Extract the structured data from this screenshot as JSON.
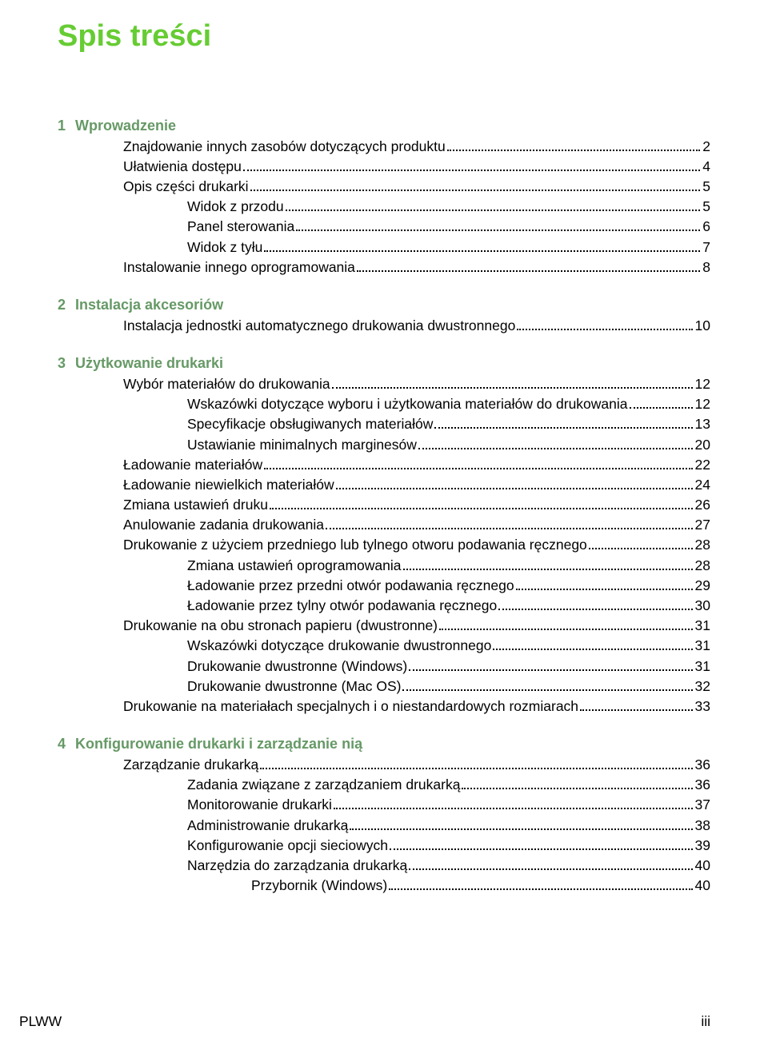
{
  "title": "Spis treści",
  "footer": {
    "left": "PLWW",
    "right": "iii"
  },
  "colors": {
    "title": "#66cc33",
    "section_head": "#669966",
    "text": "#000000",
    "background": "#ffffff"
  },
  "typography": {
    "title_fontsize_pt": 29,
    "body_fontsize_pt": 13,
    "section_head_fontsize_pt": 13.5,
    "font_family": "Arial, Helvetica, sans-serif"
  },
  "sections": [
    {
      "num": "1",
      "title": "Wprowadzenie",
      "entries": [
        {
          "label": "Znajdowanie innych zasobów dotyczących produktu",
          "page": "2",
          "indent": 1
        },
        {
          "label": "Ułatwienia dostępu",
          "page": "4",
          "indent": 1
        },
        {
          "label": "Opis części drukarki",
          "page": "5",
          "indent": 1
        },
        {
          "label": "Widok z przodu",
          "page": "5",
          "indent": 2
        },
        {
          "label": "Panel sterowania",
          "page": "6",
          "indent": 2
        },
        {
          "label": "Widok z tyłu",
          "page": "7",
          "indent": 2
        },
        {
          "label": "Instalowanie innego oprogramowania",
          "page": "8",
          "indent": 1
        }
      ]
    },
    {
      "num": "2",
      "title": "Instalacja akcesoriów",
      "entries": [
        {
          "label": "Instalacja jednostki automatycznego drukowania dwustronnego",
          "page": "10",
          "indent": 1
        }
      ]
    },
    {
      "num": "3",
      "title": "Użytkowanie drukarki",
      "entries": [
        {
          "label": "Wybór materiałów do drukowania",
          "page": "12",
          "indent": 1
        },
        {
          "label": "Wskazówki dotyczące wyboru i użytkowania materiałów do drukowania",
          "page": "12",
          "indent": 2
        },
        {
          "label": "Specyfikacje obsługiwanych materiałów",
          "page": "13",
          "indent": 2
        },
        {
          "label": "Ustawianie minimalnych marginesów",
          "page": "20",
          "indent": 2
        },
        {
          "label": "Ładowanie materiałów",
          "page": "22",
          "indent": 1
        },
        {
          "label": "Ładowanie niewielkich materiałów",
          "page": "24",
          "indent": 1
        },
        {
          "label": "Zmiana ustawień druku",
          "page": "26",
          "indent": 1
        },
        {
          "label": "Anulowanie zadania drukowania",
          "page": "27",
          "indent": 1
        },
        {
          "label": "Drukowanie z użyciem przedniego lub tylnego otworu podawania ręcznego",
          "page": "28",
          "indent": 1
        },
        {
          "label": "Zmiana ustawień oprogramowania",
          "page": "28",
          "indent": 2
        },
        {
          "label": "Ładowanie przez przedni otwór podawania ręcznego",
          "page": "29",
          "indent": 2
        },
        {
          "label": "Ładowanie przez tylny otwór podawania ręcznego",
          "page": "30",
          "indent": 2
        },
        {
          "label": "Drukowanie na obu stronach papieru (dwustronne)",
          "page": "31",
          "indent": 1
        },
        {
          "label": "Wskazówki dotyczące drukowanie dwustronnego",
          "page": "31",
          "indent": 2
        },
        {
          "label": "Drukowanie dwustronne (Windows)",
          "page": "31",
          "indent": 2
        },
        {
          "label": "Drukowanie dwustronne (Mac OS)",
          "page": "32",
          "indent": 2
        },
        {
          "label": "Drukowanie na materiałach specjalnych i o niestandardowych rozmiarach",
          "page": "33",
          "indent": 1
        }
      ]
    },
    {
      "num": "4",
      "title": "Konfigurowanie drukarki i zarządzanie nią",
      "entries": [
        {
          "label": "Zarządzanie drukarką",
          "page": "36",
          "indent": 1
        },
        {
          "label": "Zadania związane z zarządzaniem drukarką",
          "page": "36",
          "indent": 2
        },
        {
          "label": "Monitorowanie drukarki",
          "page": "37",
          "indent": 2
        },
        {
          "label": "Administrowanie drukarką",
          "page": "38",
          "indent": 2
        },
        {
          "label": "Konfigurowanie opcji sieciowych",
          "page": "39",
          "indent": 2
        },
        {
          "label": "Narzędzia do zarządzania drukarką",
          "page": "40",
          "indent": 2
        },
        {
          "label": "Przybornik (Windows)",
          "page": "40",
          "indent": 3
        }
      ]
    }
  ]
}
